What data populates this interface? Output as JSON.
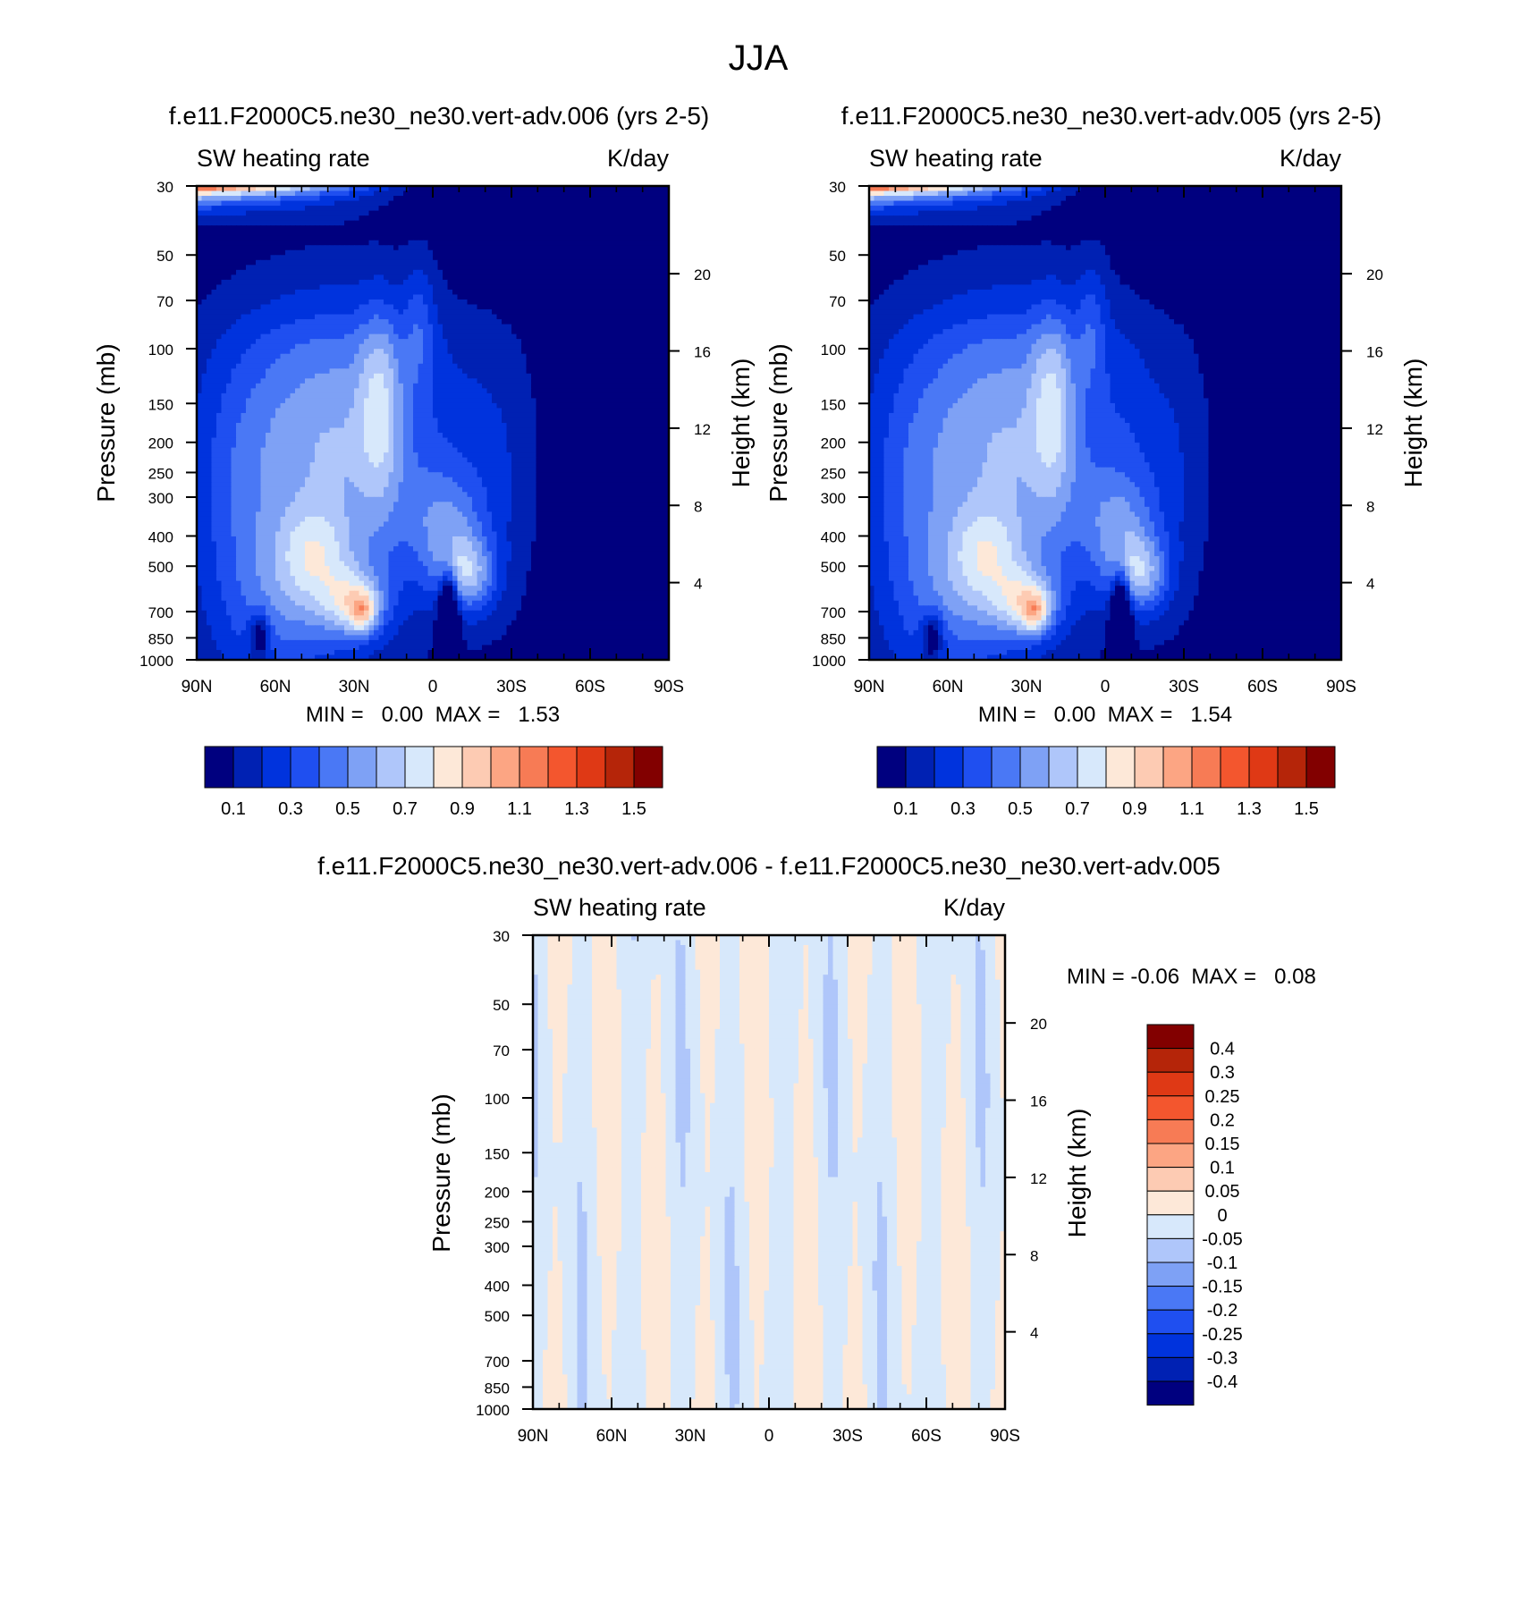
{
  "figure_title": "JJA",
  "colors": {
    "levels_main": [
      "#00007f",
      "#0021b3",
      "#0033dd",
      "#1f4ff0",
      "#4a78f5",
      "#7ea1f5",
      "#afc6fa",
      "#d7e8fb",
      "#fde8d8",
      "#fdcbb3",
      "#fca583",
      "#f77b55",
      "#f3562e",
      "#df3915",
      "#b52509",
      "#820000"
    ],
    "levels_diff": [
      "#00007f",
      "#0021b3",
      "#0033dd",
      "#1f4ff0",
      "#4a78f5",
      "#7ea1f5",
      "#afc6fa",
      "#d7e8fb",
      "#fde8d8",
      "#fdcbb3",
      "#fca583",
      "#f77b55",
      "#f3562e",
      "#df3915",
      "#b52509",
      "#820000"
    ]
  },
  "panels": [
    {
      "title": "f.e11.F2000C5.ne30_ne30.vert-adv.006 (yrs 2-5)",
      "left_string": "SW heating rate",
      "right_string": "K/day",
      "ylabel": "Pressure (mb)",
      "y2label": "Height (km)",
      "minmax": "MIN =   0.00  MAX =   1.53",
      "colorbar_labels": [
        "0.1",
        "0.3",
        "0.5",
        "0.7",
        "0.9",
        "1.1",
        "1.3",
        "1.5"
      ]
    },
    {
      "title": "f.e11.F2000C5.ne30_ne30.vert-adv.005 (yrs 2-5)",
      "left_string": "SW heating rate",
      "right_string": "K/day",
      "ylabel": "Pressure (mb)",
      "y2label": "Height (km)",
      "minmax": "MIN =   0.00  MAX =   1.54",
      "colorbar_labels": [
        "0.1",
        "0.3",
        "0.5",
        "0.7",
        "0.9",
        "1.1",
        "1.3",
        "1.5"
      ]
    },
    {
      "title": "f.e11.F2000C5.ne30_ne30.vert-adv.006 - f.e11.F2000C5.ne30_ne30.vert-adv.005",
      "left_string": "SW heating rate",
      "right_string": "K/day",
      "ylabel": "Pressure (mb)",
      "y2label": "Height (km)",
      "minmax": "MIN = -0.06  MAX =   0.08",
      "colorbar_labels": [
        "0.4",
        "0.3",
        "0.25",
        "0.2",
        "0.15",
        "0.1",
        "0.05",
        "0",
        "-0.05",
        "-0.1",
        "-0.15",
        "-0.2",
        "-0.25",
        "-0.3",
        "-0.4"
      ]
    }
  ],
  "chart_data": [
    {
      "type": "heatmap",
      "title": "f.e11.F2000C5.ne30_ne30.vert-adv.006 (yrs 2-5)",
      "variable": "SW heating rate",
      "units": "K/day",
      "xlabel": "",
      "ylabel": "Pressure (mb)",
      "y2label": "Height (km)",
      "x_ticks": [
        "90N",
        "60N",
        "30N",
        "0",
        "30S",
        "60S",
        "90S"
      ],
      "x_range": [
        90,
        -90
      ],
      "y_ticks": [
        30,
        50,
        70,
        100,
        150,
        200,
        250,
        300,
        400,
        500,
        700,
        850,
        1000
      ],
      "y_range": [
        30,
        1000
      ],
      "y_scale": "log",
      "y2_ticks": [
        20,
        16,
        12,
        8,
        4
      ],
      "min": 0.0,
      "max": 1.53,
      "contour_levels": [
        0.1,
        0.2,
        0.3,
        0.4,
        0.5,
        0.6,
        0.7,
        0.8,
        0.9,
        1.0,
        1.1,
        1.2,
        1.3,
        1.4,
        1.5
      ]
    },
    {
      "type": "heatmap",
      "title": "f.e11.F2000C5.ne30_ne30.vert-adv.005 (yrs 2-5)",
      "variable": "SW heating rate",
      "units": "K/day",
      "xlabel": "",
      "ylabel": "Pressure (mb)",
      "y2label": "Height (km)",
      "x_ticks": [
        "90N",
        "60N",
        "30N",
        "0",
        "30S",
        "60S",
        "90S"
      ],
      "x_range": [
        90,
        -90
      ],
      "y_ticks": [
        30,
        50,
        70,
        100,
        150,
        200,
        250,
        300,
        400,
        500,
        700,
        850,
        1000
      ],
      "y_range": [
        30,
        1000
      ],
      "y_scale": "log",
      "y2_ticks": [
        20,
        16,
        12,
        8,
        4
      ],
      "min": 0.0,
      "max": 1.54,
      "contour_levels": [
        0.1,
        0.2,
        0.3,
        0.4,
        0.5,
        0.6,
        0.7,
        0.8,
        0.9,
        1.0,
        1.1,
        1.2,
        1.3,
        1.4,
        1.5
      ]
    },
    {
      "type": "heatmap",
      "title": "f.e11.F2000C5.ne30_ne30.vert-adv.006 - f.e11.F2000C5.ne30_ne30.vert-adv.005",
      "variable": "SW heating rate",
      "units": "K/day",
      "xlabel": "",
      "ylabel": "Pressure (mb)",
      "y2label": "Height (km)",
      "x_ticks": [
        "90N",
        "60N",
        "30N",
        "0",
        "30S",
        "60S",
        "90S"
      ],
      "x_range": [
        90,
        -90
      ],
      "y_ticks": [
        30,
        50,
        70,
        100,
        150,
        200,
        250,
        300,
        400,
        500,
        700,
        850,
        1000
      ],
      "y_range": [
        30,
        1000
      ],
      "y_scale": "log",
      "y2_ticks": [
        20,
        16,
        12,
        8,
        4
      ],
      "min": -0.06,
      "max": 0.08,
      "contour_levels": [
        -0.4,
        -0.3,
        -0.25,
        -0.2,
        -0.15,
        -0.1,
        -0.05,
        0,
        0.05,
        0.1,
        0.15,
        0.2,
        0.25,
        0.3,
        0.4
      ]
    }
  ]
}
